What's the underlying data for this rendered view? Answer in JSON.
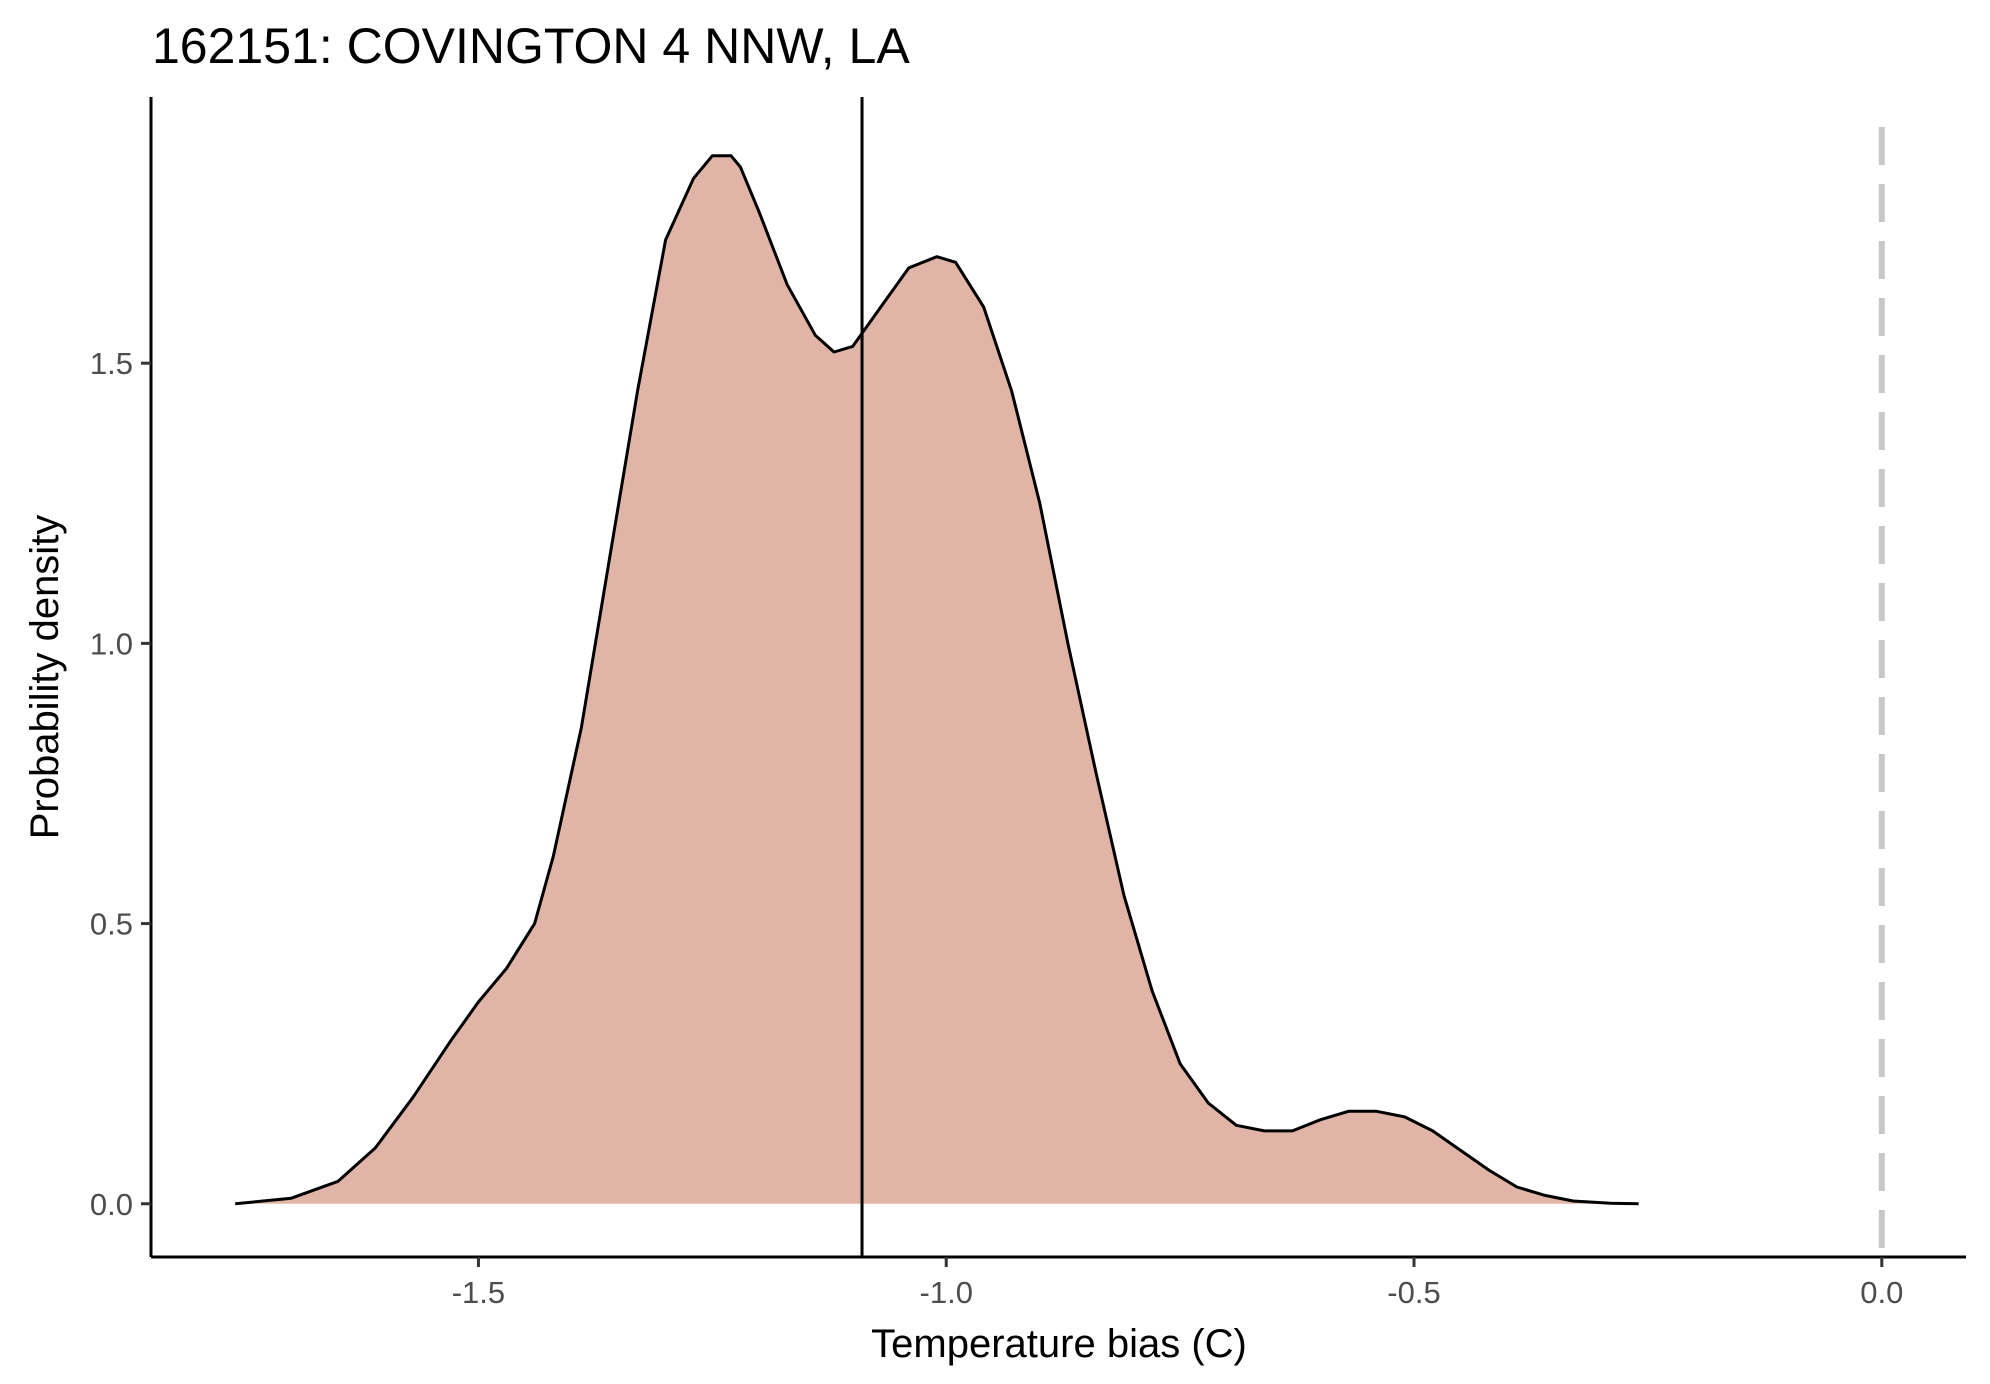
{
  "chart_data": {
    "type": "area",
    "title": "162151: COVINGTON 4 NNW, LA",
    "xlabel": "Temperature bias (C)",
    "ylabel": "Probability density",
    "xlim": [
      -1.85,
      0.09
    ],
    "ylim": [
      -0.095,
      1.975
    ],
    "x_ticks": [
      -1.5,
      -1.0,
      -0.5,
      0.0
    ],
    "x_tick_labels": [
      "-1.5",
      "-1.0",
      "-0.5",
      "0.0"
    ],
    "y_ticks": [
      0.0,
      0.5,
      1.0,
      1.5
    ],
    "y_tick_labels": [
      "0.0",
      "0.5",
      "1.0",
      "1.5"
    ],
    "grid": false,
    "fill_color": "#e0b5a7",
    "line_color": "#000000",
    "series": [
      {
        "x": [
          -1.76,
          -1.7,
          -1.65,
          -1.61,
          -1.57,
          -1.53,
          -1.5,
          -1.47,
          -1.44,
          -1.42,
          -1.39,
          -1.36,
          -1.33,
          -1.3,
          -1.27,
          -1.25,
          -1.23,
          -1.22,
          -1.2,
          -1.17,
          -1.14,
          -1.12,
          -1.1,
          -1.07,
          -1.04,
          -1.01,
          -0.99,
          -0.96,
          -0.93,
          -0.9,
          -0.87,
          -0.84,
          -0.81,
          -0.78,
          -0.75,
          -0.72,
          -0.69,
          -0.66,
          -0.63,
          -0.6,
          -0.57,
          -0.54,
          -0.51,
          -0.48,
          -0.45,
          -0.42,
          -0.39,
          -0.36,
          -0.33,
          -0.29,
          -0.26
        ],
        "y": [
          0.0,
          0.01,
          0.04,
          0.1,
          0.19,
          0.29,
          0.36,
          0.42,
          0.5,
          0.62,
          0.85,
          1.15,
          1.45,
          1.72,
          1.83,
          1.87,
          1.87,
          1.85,
          1.77,
          1.64,
          1.55,
          1.52,
          1.53,
          1.6,
          1.67,
          1.69,
          1.68,
          1.6,
          1.45,
          1.25,
          1.0,
          0.77,
          0.55,
          0.38,
          0.25,
          0.18,
          0.14,
          0.13,
          0.13,
          0.15,
          0.165,
          0.165,
          0.155,
          0.13,
          0.095,
          0.06,
          0.03,
          0.015,
          0.005,
          0.001,
          0.0
        ]
      }
    ],
    "vlines": [
      {
        "x": -1.09,
        "style": "solid",
        "color": "#000000"
      },
      {
        "x": 0.0,
        "style": "dashed",
        "color": "#c8c8c8"
      }
    ]
  }
}
